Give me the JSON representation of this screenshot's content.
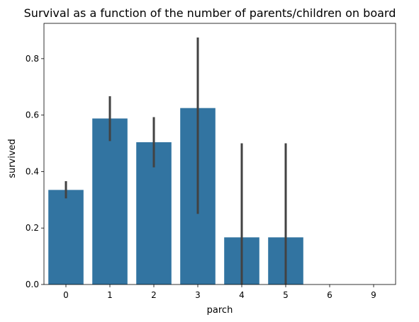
{
  "chart_data": {
    "type": "bar",
    "title": "Survival as a function of the number of parents/children on board",
    "xlabel": "parch",
    "ylabel": "survived",
    "categories": [
      "0",
      "1",
      "2",
      "3",
      "4",
      "5",
      "6",
      "9"
    ],
    "values": [
      0.335,
      0.588,
      0.504,
      0.625,
      0.167,
      0.167,
      0.0,
      0.0
    ],
    "error_bars": [
      [
        0.305,
        0.366
      ],
      [
        0.508,
        0.667
      ],
      [
        0.415,
        0.593
      ],
      [
        0.25,
        0.875
      ],
      [
        0.0,
        0.5
      ],
      [
        0.0,
        0.5
      ],
      null,
      null
    ],
    "ylim": [
      0,
      0.925
    ],
    "yticks": [
      0.0,
      0.2,
      0.4,
      0.6,
      0.8
    ],
    "ytick_labels": [
      "0.0",
      "0.2",
      "0.4",
      "0.6",
      "0.8"
    ],
    "grid": false,
    "legend": "none",
    "bar_color": "#3274a1",
    "errorbar_color": "#424242"
  }
}
